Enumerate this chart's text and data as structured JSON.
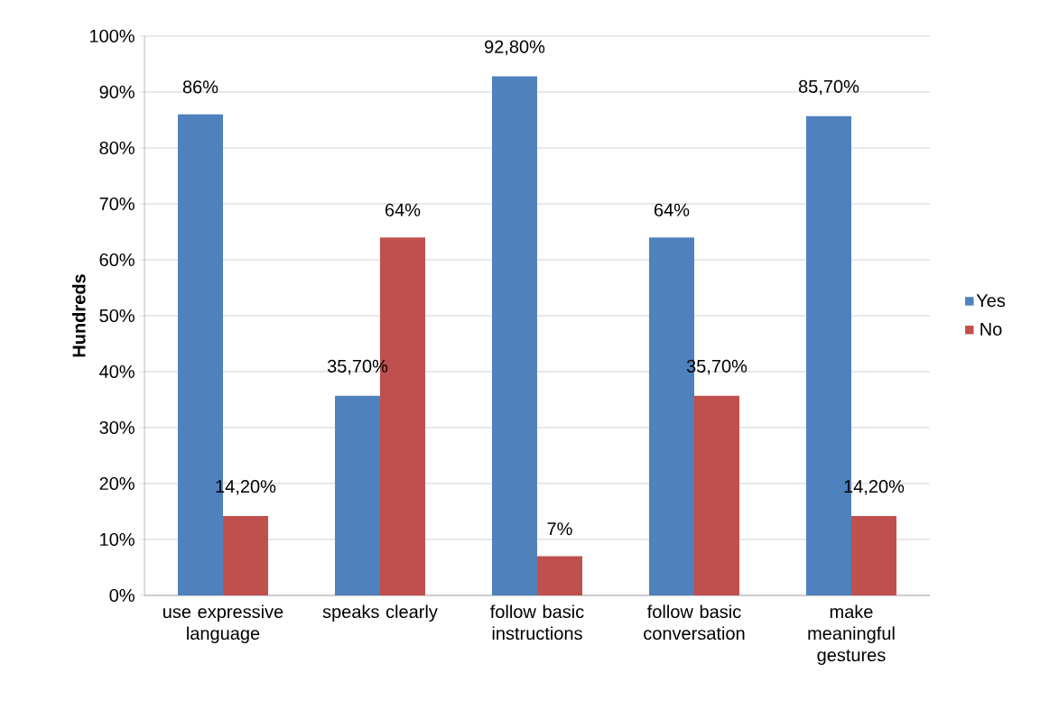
{
  "chart_data": {
    "type": "bar",
    "ylabel": "Hundreds",
    "categories": [
      "use expressive language",
      "speaks clearly",
      "follow basic instructions",
      "follow basic conversation",
      "make meaningful gestures"
    ],
    "series": [
      {
        "name": "Yes",
        "color": "#4f81bd",
        "values": [
          86,
          35.7,
          92.8,
          64,
          85.7
        ],
        "value_labels": [
          "86%",
          "35,70%",
          "92,80%",
          "64%",
          "85,70%"
        ]
      },
      {
        "name": "No",
        "color": "#c0504d",
        "values": [
          14.2,
          64,
          7,
          35.7,
          14.2
        ],
        "value_labels": [
          "14,20%",
          "64%",
          "7%",
          "35,70%",
          "14,20%"
        ]
      }
    ],
    "ylim": [
      0,
      100
    ],
    "yticks": [
      {
        "value": 0,
        "label": "0%"
      },
      {
        "value": 10,
        "label": "10%"
      },
      {
        "value": 20,
        "label": "20%"
      },
      {
        "value": 30,
        "label": "30%"
      },
      {
        "value": 40,
        "label": "40%"
      },
      {
        "value": 50,
        "label": "50%"
      },
      {
        "value": 60,
        "label": "60%"
      },
      {
        "value": 70,
        "label": "70%"
      },
      {
        "value": 80,
        "label": "80%"
      },
      {
        "value": 90,
        "label": "90%"
      },
      {
        "value": 100,
        "label": "100%"
      }
    ],
    "grid": "y",
    "legend": "right"
  }
}
